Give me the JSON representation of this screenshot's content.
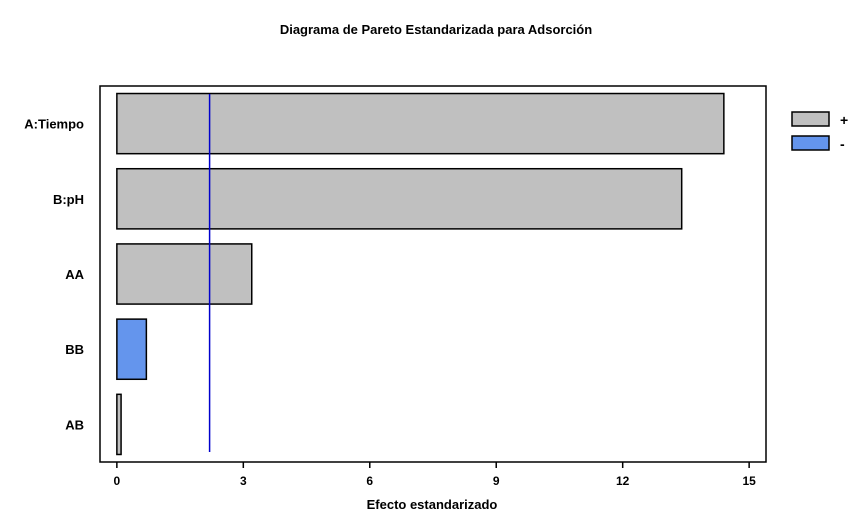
{
  "chart_data": {
    "type": "bar",
    "orientation": "horizontal",
    "title": "Diagrama de Pareto Estandarizada para Adsorción",
    "xlabel": "Efecto estandarizado",
    "ylabel": "",
    "categories": [
      "A:Tiempo",
      "B:pH",
      "AA",
      "BB",
      "AB"
    ],
    "values": [
      14.4,
      13.4,
      3.2,
      0.7,
      0.1
    ],
    "signs": [
      "+",
      "+",
      "+",
      "-",
      "+"
    ],
    "xlim": [
      -0.4,
      15.4
    ],
    "xticks": [
      0,
      3,
      6,
      9,
      12,
      15
    ],
    "reference_line": 2.2,
    "legend": [
      {
        "label": "+",
        "color": "#c0c0c0"
      },
      {
        "label": "-",
        "color": "#6495ed"
      }
    ],
    "legend_position": "top-right",
    "reference_line_color": "#0000cc",
    "grid": false
  }
}
